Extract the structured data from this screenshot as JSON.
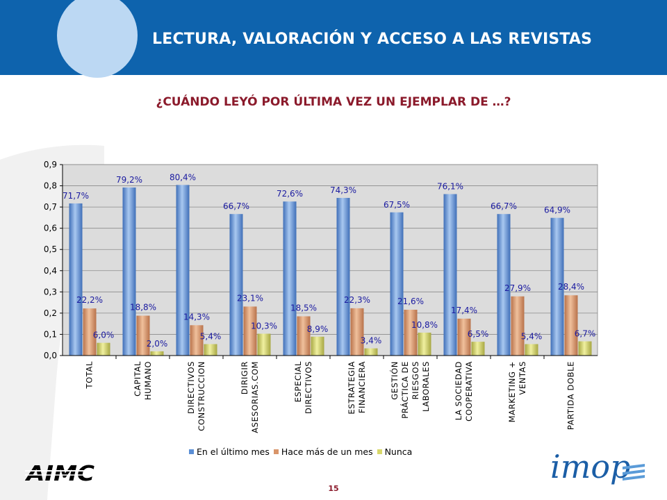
{
  "header": {
    "title": "LECTURA, VALORACIÓN Y ACCESO A LAS REVISTAS"
  },
  "question": "¿CUÁNDO LEYÓ POR ÚLTIMA VEZ UN EJEMPLAR DE …?",
  "page_number": "15",
  "logos": {
    "left": "AIMC",
    "right": "imop"
  },
  "colors": {
    "header_band": "#0e63ad",
    "question_text": "#8b1a2b",
    "series_1": "#5b8fd6",
    "series_2": "#d9956a",
    "series_3": "#d8d86a",
    "plot_background": "#dcdcdc",
    "value_label": "#1a1aa0"
  },
  "chart_data": {
    "type": "bar",
    "categories": [
      [
        "TOTAL"
      ],
      [
        "CAPITAL",
        "HUMANO"
      ],
      [
        "DIRECTIVOS",
        "CONSTRUCCION"
      ],
      [
        "DIRIGIR",
        "ASESORIAS.COM"
      ],
      [
        "ESPECIAL",
        "DIRECTIVOS"
      ],
      [
        "ESTRATEGIA",
        "FINANCIERA"
      ],
      [
        "GESTIÓN",
        "PRÁCTICA DE",
        "RIESGOS",
        "LABORALES"
      ],
      [
        "LA SOCIEDAD",
        "COOPERATIVA"
      ],
      [
        "MARKETING +",
        "VENTAS"
      ],
      [
        "PARTIDA DOBLE"
      ]
    ],
    "series": [
      {
        "name": "En el último mes",
        "values": [
          0.717,
          0.792,
          0.804,
          0.667,
          0.726,
          0.743,
          0.675,
          0.761,
          0.667,
          0.649
        ],
        "labels": [
          "71,7%",
          "79,2%",
          "80,4%",
          "66,7%",
          "72,6%",
          "74,3%",
          "67,5%",
          "76,1%",
          "66,7%",
          "64,9%"
        ]
      },
      {
        "name": "Hace más de un mes",
        "values": [
          0.222,
          0.188,
          0.143,
          0.231,
          0.185,
          0.223,
          0.216,
          0.174,
          0.279,
          0.284
        ],
        "labels": [
          "22,2%",
          "18,8%",
          "14,3%",
          "23,1%",
          "18,5%",
          "22,3%",
          "21,6%",
          "17,4%",
          "27,9%",
          "28,4%"
        ]
      },
      {
        "name": "Nunca",
        "values": [
          0.06,
          0.02,
          0.054,
          0.103,
          0.089,
          0.034,
          0.108,
          0.065,
          0.054,
          0.067
        ],
        "labels": [
          "6,0%",
          "2,0%",
          "5,4%",
          "10,3%",
          "8,9%",
          "3,4%",
          "10,8%",
          "6,5%",
          "5,4%",
          "6,7%"
        ]
      }
    ],
    "ylim": [
      0,
      0.9
    ],
    "yticks": [
      "0,0",
      "0,1",
      "0,2",
      "0,3",
      "0,4",
      "0,5",
      "0,6",
      "0,7",
      "0,8",
      "0,9"
    ],
    "grid": true,
    "legend_position": "bottom"
  }
}
